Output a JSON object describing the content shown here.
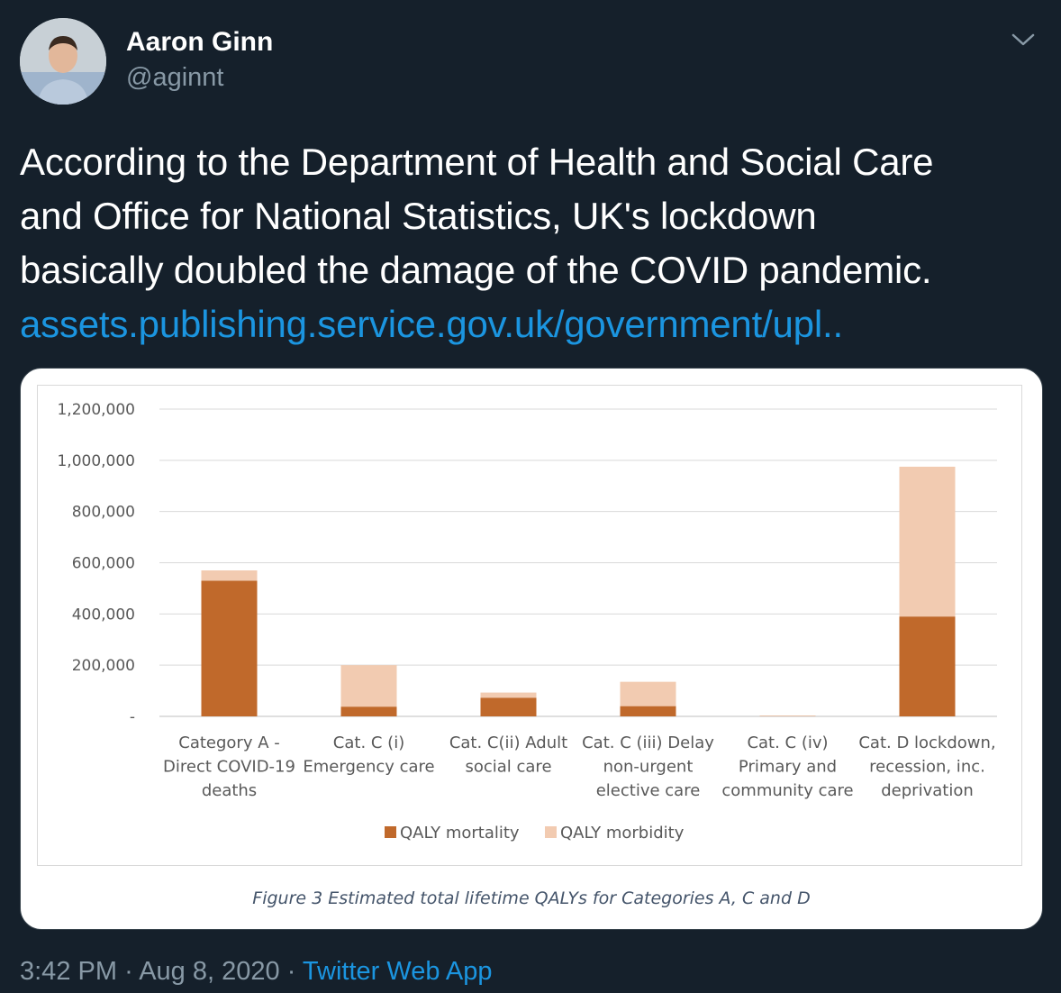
{
  "tweet": {
    "author_name": "Aaron Ginn",
    "author_handle": "@aginnt",
    "text_lines": [
      "According to the Department of Health and Social Care",
      "and Office for National Statistics, UK's lockdown",
      "basically doubled the damage of the COVID pandemic."
    ],
    "link": "assets.publishing.service.gov.uk/government/upl..",
    "time": "3:42 PM",
    "separator": "·",
    "date": "Aug 8, 2020",
    "source_app": "Twitter Web App"
  },
  "icons": {
    "menu": "chevron-down-icon",
    "avatar": "avatar-photo"
  },
  "colors": {
    "background": "#15202b",
    "link": "#1b95e0",
    "secondary_text": "#8899a6",
    "mortality": "#c0692b",
    "morbidity": "#f2cbb1"
  },
  "chart_data": {
    "type": "bar",
    "stacked": true,
    "categories": [
      [
        "Category A -",
        "Direct COVID-19",
        "deaths"
      ],
      [
        "Cat. C (i)",
        "Emergency care"
      ],
      [
        "Cat. C(ii) Adult",
        "social care"
      ],
      [
        "Cat. C (iii) Delay",
        "non-urgent",
        "elective care"
      ],
      [
        "Cat. C (iv)",
        "Primary and",
        "community care"
      ],
      [
        "Cat. D lockdown,",
        "recession, inc.",
        "deprivation"
      ]
    ],
    "series": [
      {
        "name": "QALY mortality",
        "values": [
          530000,
          38000,
          73000,
          40000,
          1000,
          390000
        ]
      },
      {
        "name": "QALY morbidity",
        "values": [
          40000,
          162000,
          20000,
          95000,
          2000,
          585000
        ]
      }
    ],
    "y_ticks": [
      "-",
      "200,000",
      "400,000",
      "600,000",
      "800,000",
      "1,000,000",
      "1,200,000"
    ],
    "ylim": [
      0,
      1200000
    ],
    "grid": true,
    "legend_position": "bottom",
    "caption": "Figure 3 Estimated total lifetime QALYs for Categories A, C and D"
  }
}
